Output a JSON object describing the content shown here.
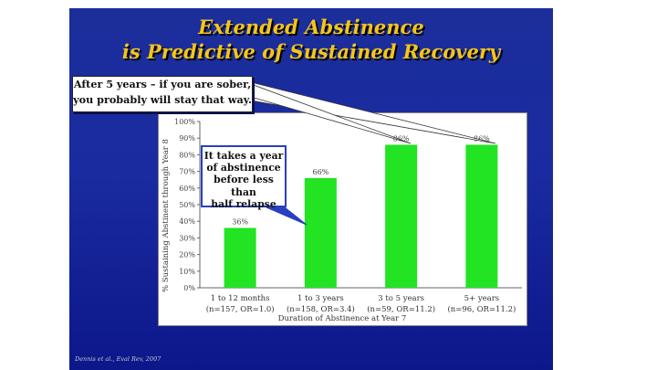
{
  "slide": {
    "title_line1": "Extended Abstinence",
    "title_line2": "is Predictive of Sustained Recovery",
    "callout_top_line1": "After 5 years – if you are sober,",
    "callout_top_line2": "you probably will stay that way.",
    "callout_mid_lines": [
      "It takes a year",
      "of abstinence",
      "before less than",
      "half relapse"
    ],
    "credit": "Dennis et al., Eval Rev, 2007",
    "colors": {
      "background": "#1a2ba0",
      "title": "#f5c518",
      "bar": "#22e422",
      "callout_border": "#2a3fc0"
    }
  },
  "chart_data": {
    "type": "bar",
    "title": "",
    "xlabel": "Duration of Abstinence at Year 7",
    "ylabel": "% Sustaining Abstinent through Year 8",
    "ylim": [
      0,
      100
    ],
    "yticks": [
      "0%",
      "10%",
      "20%",
      "30%",
      "40%",
      "50%",
      "60%",
      "70%",
      "80%",
      "90%",
      "100%"
    ],
    "categories": [
      "1 to 12 months",
      "1 to 3 years",
      "3 to 5 years",
      "5+ years"
    ],
    "sublabels": [
      "(n=157, OR=1.0)",
      "(n=158, OR=3.4)",
      "(n=59, OR=11.2)",
      "(n=96, OR=11.2)"
    ],
    "values": [
      36,
      66,
      86,
      86
    ],
    "labels": [
      "36%",
      "66%",
      "86%",
      "86%"
    ]
  }
}
